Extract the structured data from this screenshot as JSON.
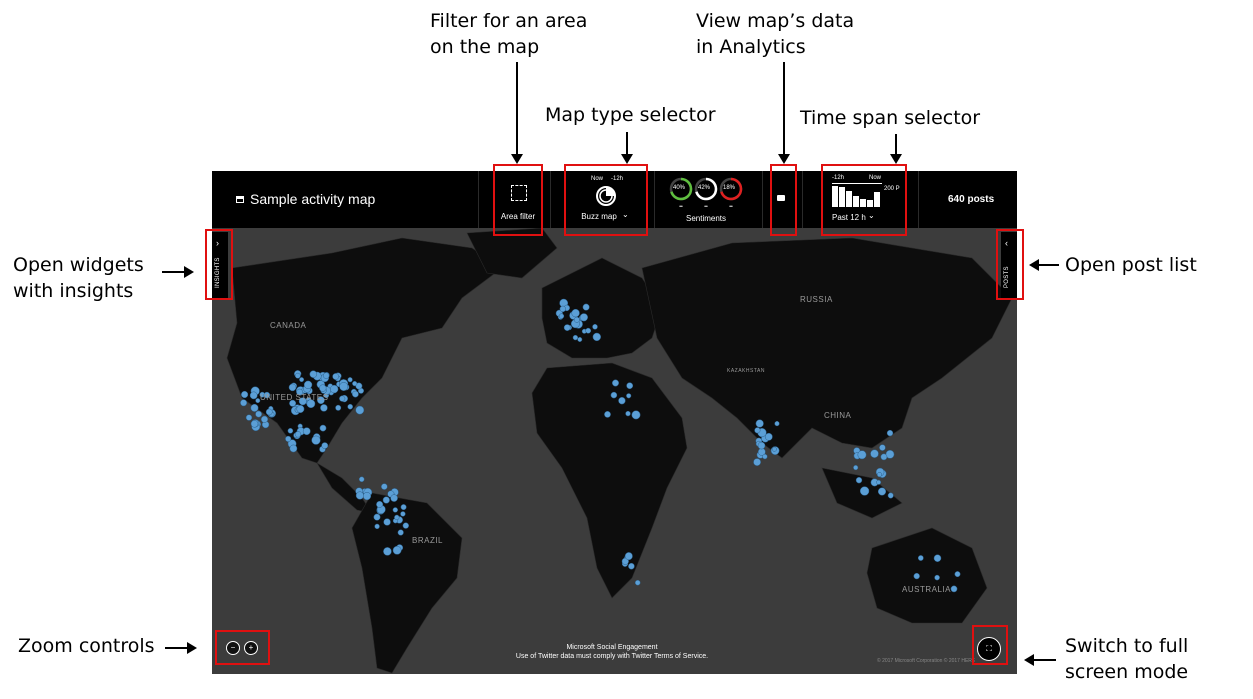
{
  "callouts": {
    "area_filter_line1": "Filter for an area",
    "area_filter_line2": "on the map",
    "map_type": "Map type selector",
    "analytics_line1": "View map’s data",
    "analytics_line2": "in Analytics",
    "time_span": "Time span selector",
    "insights_line1": "Open widgets",
    "insights_line2": "with insights",
    "post_list": "Open post list",
    "zoom": "Zoom controls",
    "fullscreen_line1": "Switch to full",
    "fullscreen_line2": "screen mode"
  },
  "app": {
    "title": "Sample activity map",
    "area_filter_label": "Area filter",
    "buzz": {
      "now": "Now",
      "ago": "-12h",
      "label": "Buzz map"
    },
    "sentiments": {
      "label": "Sentiments",
      "positive": "40%",
      "neutral": "42%",
      "negative": "18%",
      "positive_level": 0.4,
      "neutral_level": 0.42,
      "negative_level": 0.18
    },
    "timespan": {
      "start": "-12h",
      "end": "Now",
      "max": "200 P",
      "label": "Past 12 h",
      "bars": [
        0.95,
        0.9,
        0.75,
        0.5,
        0.35,
        0.3,
        0.7
      ]
    },
    "posts_count": "640 posts",
    "insights_tab": "INSIGHTS",
    "posts_tab": "POSTS",
    "footer_line1": "Microsoft Social Engagement",
    "footer_line2": "Use of Twitter data must comply with Twitter Terms of Service.",
    "copyright": "© 2017 Microsoft Corporation © 2017 HERE",
    "countries": {
      "canada": "CANADA",
      "us": "UNITED STATES",
      "brazil": "BRAZIL",
      "russia": "RUSSIA",
      "china": "CHINA",
      "australia": "AUSTRALIA",
      "kazakhstan": "KAZAKHSTAN"
    },
    "colors": {
      "positive": "#5fbf3f",
      "neutral": "#ffffff",
      "negative": "#e02020",
      "dot": "#5b9fd6",
      "land": "#0d0d0d",
      "water": "#3c3c3c"
    }
  }
}
